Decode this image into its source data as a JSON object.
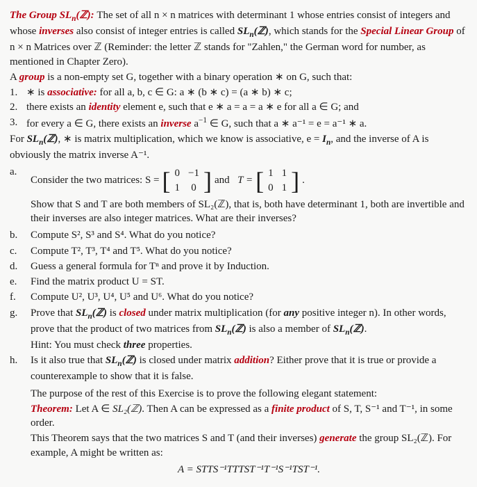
{
  "intro": {
    "title_label": "The Group SL",
    "title_sub": "n",
    "title_arg": "(ℤ):",
    "def1": "The set of all n × n matrices with determinant 1 whose entries consist of integers and whose ",
    "inverses_word": "inverses",
    "def2": " also consist of integer entries is called ",
    "sl_text": "SL",
    "sl_sub": "n",
    "sl_arg": "(ℤ)",
    "def3": ", which stands for the ",
    "slg": "Special Linear Group",
    "def4": " of n × n Matrices over ℤ (Reminder: the letter ℤ stands for \"Zahlen,\" the German word for number, as mentioned in Chapter Zero)."
  },
  "group_def": {
    "lead1": "A ",
    "group_word": "group",
    "lead2": " is a non-empty set G, together with a binary operation ∗ on G, such that:"
  },
  "axioms": {
    "a1_n": "1.",
    "a1_pre": "∗ is ",
    "a1_word": "associative:",
    "a1_rest": " for all a, b, c ∈ G:  a ∗ (b ∗ c) = (a ∗ b) ∗ c;",
    "a2_n": "2.",
    "a2_pre": "there exists an ",
    "a2_word": "identity",
    "a2_rest": " element e, such that e ∗ a = a = a ∗ e for all a ∈ G;  and",
    "a3_n": "3.",
    "a3_pre": "for every a ∈ G, there exists an ",
    "a3_word": "inverse",
    "a3_mid": " a",
    "a3_exp": "−1",
    "a3_rest": " ∈ G, such that a ∗ a⁻¹ = e = a⁻¹ ∗ a."
  },
  "forsl": {
    "p1": "For ",
    "sl": "SL",
    "sl_sub": "n",
    "sl_arg": "(ℤ)",
    "p2": ", ∗ is matrix multiplication, which we know is associative, e = ",
    "In_i": "I",
    "In_sub": "n",
    "p3": ", and the inverse of A is obviously the matrix inverse A⁻¹."
  },
  "part_a": {
    "m": "a.",
    "lead": "Consider the two matrices:  S =",
    "and": "and",
    "Teq": "T =",
    "dot": ".",
    "S": [
      "0",
      "−1",
      "1",
      "0"
    ],
    "T": [
      "1",
      "1",
      "0",
      "1"
    ],
    "sub": "Show that S and T are both members of SL₂(ℤ), that is, both have determinant 1, both are invertible and their inverses are also integer matrices. What are their inverses?"
  },
  "part_b": {
    "m": "b.",
    "t": "Compute S², S³ and S⁴. What do you notice?"
  },
  "part_c": {
    "m": "c.",
    "t": "Compute T², T³, T⁴ and T⁵. What do you notice?"
  },
  "part_d": {
    "m": "d.",
    "t": "Guess a general formula for Tⁿ and prove it by Induction."
  },
  "part_e": {
    "m": "e.",
    "t": "Find the matrix product U = ST."
  },
  "part_f": {
    "m": "f.",
    "t": "Compute U², U³, U⁴, U⁵ and U⁶. What do you notice?"
  },
  "part_g": {
    "m": "g.",
    "p1": "Prove that ",
    "sl": "SL",
    "sl_sub": "n",
    "sl_arg": "(ℤ)",
    "p2": " is ",
    "closed": "closed",
    "p3": " under matrix multiplication (for ",
    "any": "any",
    "p4": " positive integer n). In other words, prove that the product of two matrices from ",
    "p5": " is also a member of ",
    "hint": "Hint: You must check ",
    "three": "three",
    "hint2": " properties."
  },
  "part_h": {
    "m": "h.",
    "p1": "Is it also true that ",
    "sl": "SL",
    "sl_sub": "n",
    "sl_arg": "(ℤ)",
    "p2": " is closed under matrix ",
    "add": "addition",
    "p3": "? Either prove that it is true or provide a counterexample to show that it is false."
  },
  "purpose": "The purpose of the rest of this Exercise is to prove the following elegant statement:",
  "theorem": {
    "label": "Theorem:",
    "p1": " Let A ∈ ",
    "sl2": "SL₂(ℤ)",
    "p2": ". Then A can be expressed as a ",
    "fp": "finite product",
    "p3": " of S, T, S⁻¹ and T⁻¹, in some order."
  },
  "says": {
    "p1": "This Theorem says that the two matrices S and T (and their inverses) ",
    "gen": "generate",
    "p2": " the group SL₂(ℤ). For example, A might be written as:"
  },
  "eq": "A = STTS⁻¹TTTST⁻¹T⁻¹S⁻¹TST⁻¹."
}
